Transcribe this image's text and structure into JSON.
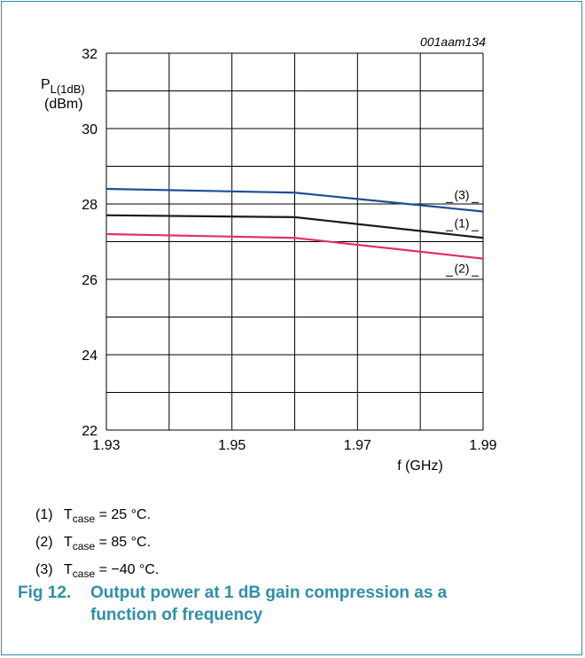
{
  "chart_data": {
    "type": "line",
    "figure_id": "001aam134",
    "ylabel_main": "P",
    "ylabel_sub": "L(1dB)",
    "ylabel_unit": "(dBm)",
    "xlabel": "f (GHz)",
    "xlim": [
      1.93,
      1.99
    ],
    "ylim": [
      22,
      32
    ],
    "x_ticks": [
      "1.93",
      "1.95",
      "1.97",
      "1.99"
    ],
    "y_ticks": [
      "22",
      "24",
      "26",
      "28",
      "30",
      "32"
    ],
    "grid": true,
    "x": [
      1.93,
      1.96,
      1.99
    ],
    "series": [
      {
        "name": "(1)",
        "color": "#1a1a1a",
        "values": [
          27.7,
          27.65,
          27.1
        ],
        "label_at": 27.5
      },
      {
        "name": "(2)",
        "color": "#e0306a",
        "values": [
          27.2,
          27.1,
          26.55
        ],
        "label_at": 26.3
      },
      {
        "name": "(3)",
        "color": "#1f4e99",
        "values": [
          28.4,
          28.3,
          27.8
        ],
        "label_at": 28.25
      }
    ]
  },
  "notes": [
    {
      "num": "(1)",
      "t": "T",
      "sub": "case",
      "rest": " = 25 °C."
    },
    {
      "num": "(2)",
      "t": "T",
      "sub": "case",
      "rest": " = 85 °C."
    },
    {
      "num": "(3)",
      "t": "T",
      "sub": "case",
      "rest": " = −40 °C."
    }
  ],
  "caption": {
    "number": "Fig 12.",
    "line1": "Output power at 1 dB gain compression as a",
    "line2": "function of frequency"
  }
}
